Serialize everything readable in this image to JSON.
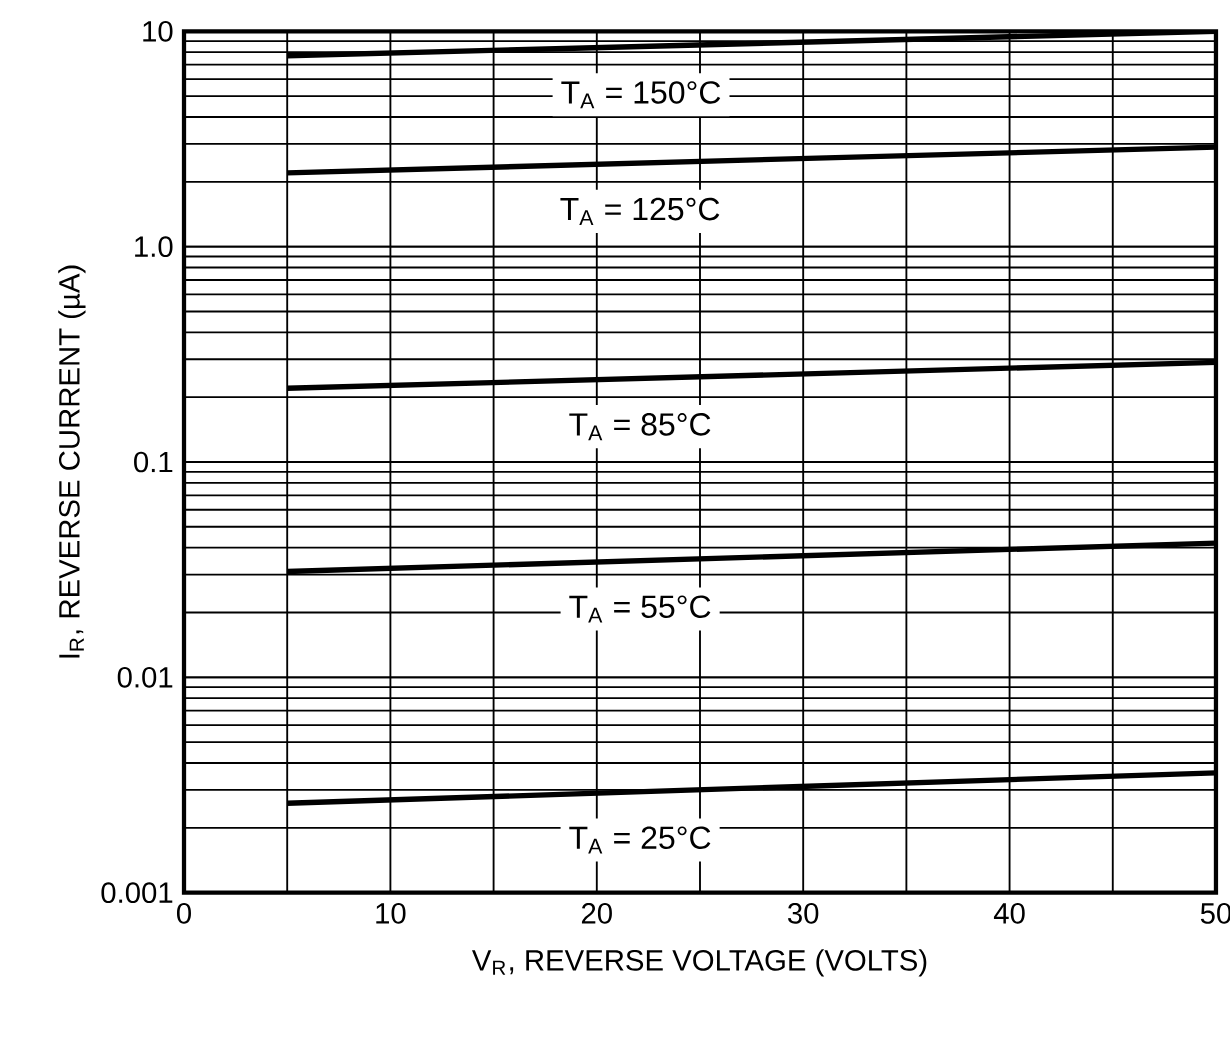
{
  "chart_data": {
    "type": "line",
    "xlabel": "V$_{R}$, REVERSE VOLTAGE (VOLTS)",
    "ylabel": "I$_{R}$, REVERSE CURRENT (µA)",
    "log": "y",
    "grid": true,
    "marker": "none",
    "line_style": "solid",
    "xlim": [
      0,
      50
    ],
    "xticks": [
      0,
      10,
      20,
      30,
      40,
      50
    ],
    "ylim": [
      0.001,
      10
    ],
    "yticks": [
      {
        "value": 0.001,
        "label": "0.001"
      },
      {
        "value": 0.01,
        "label": "0.01"
      },
      {
        "value": 0.1,
        "label": "0.1"
      },
      {
        "value": 1,
        "label": "1.0"
      },
      {
        "value": 10,
        "label": "10"
      }
    ],
    "x": [
      5,
      50
    ],
    "series": [
      {
        "color": "#000000",
        "values": [
          7.7,
          10
        ]
      },
      {
        "color": "#000000",
        "values": [
          2.2,
          2.9
        ]
      },
      {
        "color": "#000000",
        "values": [
          0.22,
          0.29
        ]
      },
      {
        "color": "#000000",
        "values": [
          0.031,
          0.042
        ]
      },
      {
        "color": "#000000",
        "values": [
          0.0026,
          0.0036
        ]
      }
    ],
    "annotations": [
      "T$_{A}$ = 150°C",
      "T$_{A}$ = 125°C",
      "T$_{A}$ = 85°C",
      "T$_{A}$ = 55°C",
      "T$_{A}$ = 25°C"
    ]
  }
}
